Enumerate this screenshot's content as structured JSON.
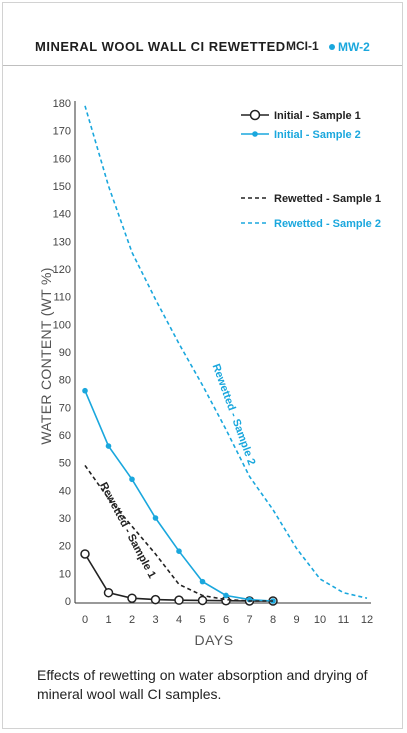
{
  "title": "MINERAL WOOL WALL CI REWETTED",
  "header_legend": [
    {
      "label": "MCI-1",
      "marker": "open-circle",
      "color": "#222222"
    },
    {
      "label": "MW-2",
      "marker": "dot",
      "color": "#1aa7dd"
    }
  ],
  "caption": "Effects of rewetting on water absorption and drying of mineral wool wall CI samples.",
  "chart_data": {
    "type": "line",
    "xlabel": "DAYS",
    "ylabel": "WATER CONTENT (WT %)",
    "xlim": [
      0,
      12
    ],
    "ylim": [
      0,
      180
    ],
    "xticks": [
      0,
      1,
      2,
      3,
      4,
      5,
      6,
      7,
      8,
      9,
      10,
      11,
      12
    ],
    "yticks": [
      0,
      10,
      20,
      30,
      40,
      50,
      60,
      70,
      80,
      90,
      100,
      110,
      120,
      130,
      140,
      150,
      160,
      170,
      180
    ],
    "grid": false,
    "legend_position": "top-right",
    "series": [
      {
        "name": "Initial - Sample 1",
        "color": "#222222",
        "style": "solid-open-circle",
        "x": [
          0,
          1,
          2,
          3,
          4,
          5,
          6,
          7,
          8
        ],
        "y": [
          17,
          3,
          1,
          0.5,
          0.3,
          0.2,
          0.1,
          0,
          0
        ]
      },
      {
        "name": "Initial - Sample 2",
        "color": "#1aa7dd",
        "style": "solid-dot",
        "x": [
          0,
          1,
          2,
          3,
          4,
          5,
          6,
          7,
          8
        ],
        "y": [
          76,
          56,
          44,
          30,
          18,
          7,
          2,
          0.5,
          0
        ]
      },
      {
        "name": "Rewetted - Sample 1",
        "color": "#222222",
        "style": "dashed",
        "x": [
          0,
          1,
          2,
          3,
          4,
          5,
          6,
          7,
          8
        ],
        "y": [
          49,
          37,
          27,
          17,
          6,
          2,
          0.5,
          0,
          0
        ]
      },
      {
        "name": "Rewetted - Sample 2",
        "color": "#1aa7dd",
        "style": "dashed",
        "x": [
          0,
          1,
          2,
          3,
          4,
          5,
          6,
          7,
          8,
          9,
          10,
          11,
          12
        ],
        "y": [
          179,
          150,
          126,
          109,
          93,
          78,
          62,
          45,
          33,
          19,
          8,
          3,
          1
        ]
      }
    ],
    "annotations": [
      {
        "text": "Rewetted - Sample 2",
        "color": "#1aa7dd",
        "x": 6.2,
        "y": 67
      },
      {
        "text": "Rewetted - Sample 1",
        "color": "#222222",
        "x": 1.7,
        "y": 25
      }
    ]
  }
}
